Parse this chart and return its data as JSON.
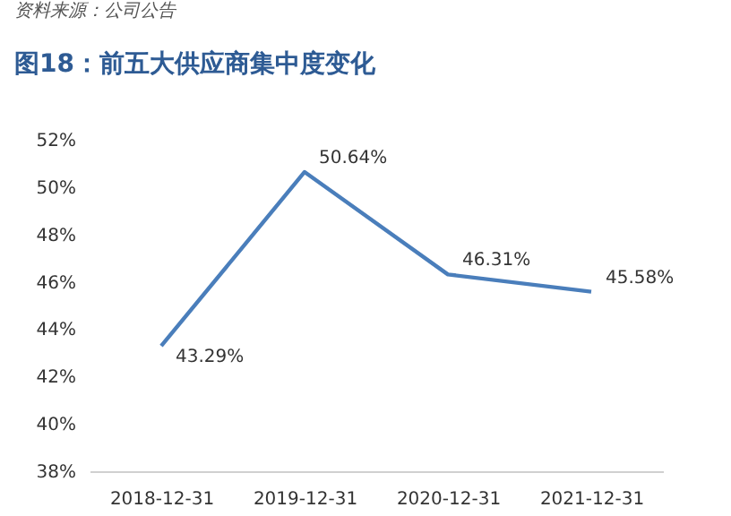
{
  "chart_data": {
    "type": "line",
    "title": "图18：前五大供应商集中度变化",
    "annotations": [
      "资料来源：公司公告"
    ],
    "categories": [
      "2018-12-31",
      "2019-12-31",
      "2020-12-31",
      "2021-12-31"
    ],
    "series": [
      {
        "color": "#4a7ebb",
        "values": [
          43.29,
          50.64,
          46.31,
          45.58
        ],
        "value_labels": [
          "43.29%",
          "50.64%",
          "46.31%",
          "45.58%"
        ]
      }
    ],
    "ylim": [
      38,
      52
    ],
    "yticks": [
      {
        "value": 38,
        "label": "38%"
      },
      {
        "value": 40,
        "label": "40%"
      },
      {
        "value": 42,
        "label": "42%"
      },
      {
        "value": 44,
        "label": "44%"
      },
      {
        "value": 46,
        "label": "46%"
      },
      {
        "value": 48,
        "label": "48%"
      },
      {
        "value": 50,
        "label": "50%"
      },
      {
        "value": 52,
        "label": "52%"
      }
    ],
    "grid": false,
    "marker": "none",
    "line_style": "solid"
  }
}
